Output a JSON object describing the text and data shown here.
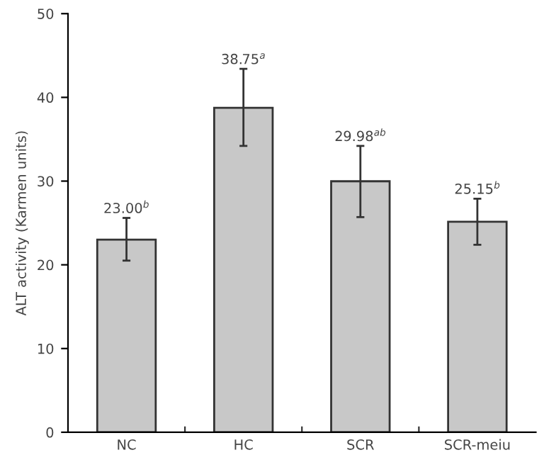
{
  "chart_data": {
    "type": "bar",
    "ylabel": "ALT activity (Karmen units)",
    "categories": [
      "NC",
      "HC",
      "SCR",
      "SCR-meiu"
    ],
    "values": [
      23.0,
      38.75,
      29.98,
      25.15
    ],
    "errors": [
      [
        20.5,
        25.6
      ],
      [
        34.2,
        43.4
      ],
      [
        25.7,
        34.2
      ],
      [
        22.4,
        27.9
      ]
    ],
    "value_labels": [
      "23.00$^{b}$",
      "38.75$^{a}$",
      "29.98$^{ab}$",
      "25.15$^{b}$"
    ],
    "color": "#c8c8c8",
    "ylim": [
      0,
      50
    ],
    "yticks": [
      0,
      10,
      20,
      30,
      40,
      50
    ],
    "grid": false
  }
}
